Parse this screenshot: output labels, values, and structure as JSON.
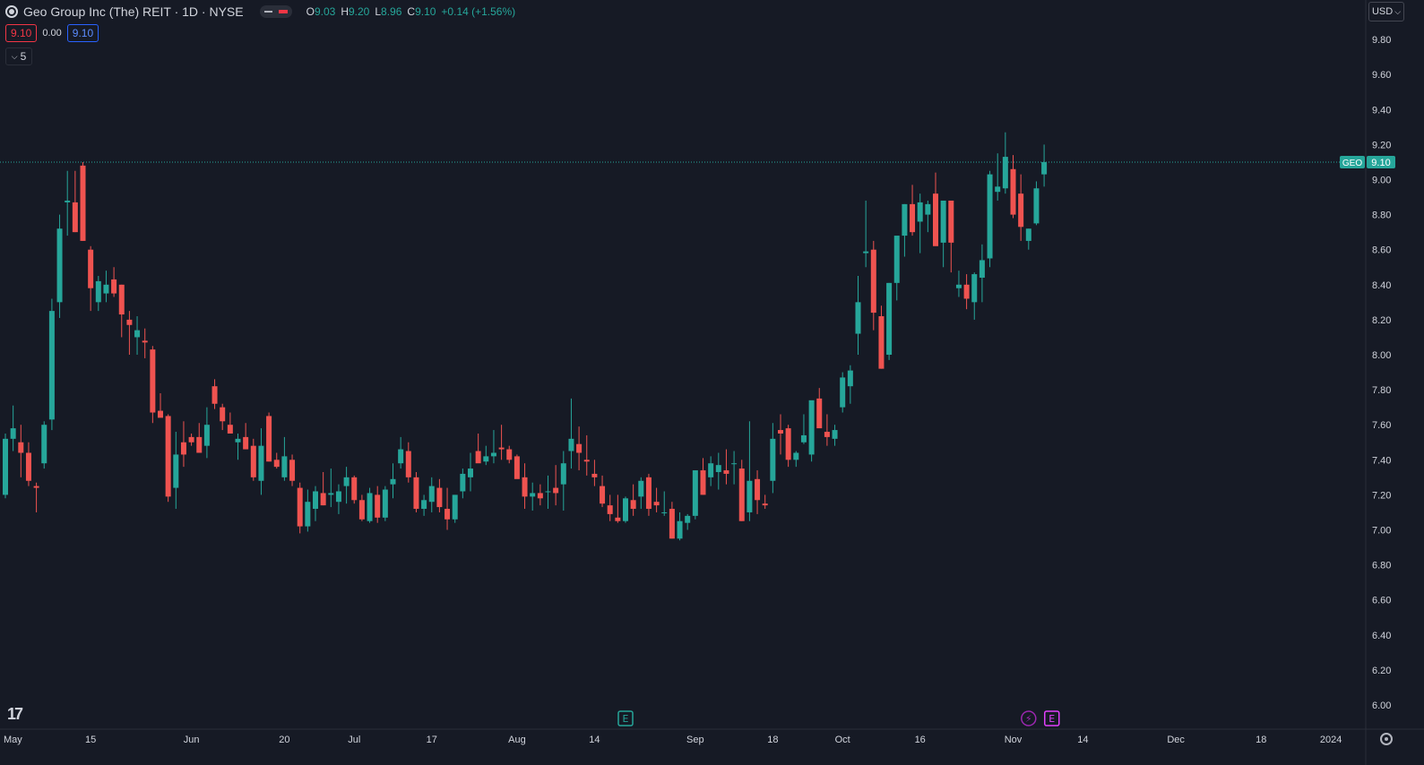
{
  "header": {
    "title": "Geo Group Inc (The) REIT · 1D · NYSE",
    "ohlc": [
      {
        "label": "O",
        "value": "9.03"
      },
      {
        "label": "H",
        "value": "9.20"
      },
      {
        "label": "L",
        "value": "8.96"
      },
      {
        "label": "C",
        "value": "9.10"
      }
    ],
    "change": "+0.14 (+1.56%)",
    "bid": "9.10",
    "spread": "0.00",
    "ask": "9.10",
    "indicator_count": "5",
    "currency": "USD"
  },
  "colors": {
    "background": "#161a25",
    "up": "#26a69a",
    "down": "#ef5350",
    "grid": "#2a2e39",
    "text": "#d1d4dc"
  },
  "markers": [
    {
      "type": "earnings",
      "label": "E",
      "date_index": 80,
      "color": "#26a69a"
    },
    {
      "type": "dividend",
      "label": "⚡",
      "date_index": 132,
      "color": "#9c27b0"
    },
    {
      "type": "earnings",
      "label": "E",
      "date_index": 135,
      "color": "#e040fb"
    }
  ],
  "chart_data": {
    "type": "candlestick",
    "symbol": "GEO",
    "last_price": "9.10",
    "ylim": [
      5.9,
      10.0
    ],
    "y_ticks": [
      "9.80",
      "9.60",
      "9.40",
      "9.20",
      "9.00",
      "8.80",
      "8.60",
      "8.40",
      "8.20",
      "8.00",
      "7.80",
      "7.60",
      "7.40",
      "7.20",
      "7.00",
      "6.80",
      "6.60",
      "6.40",
      "6.20",
      "6.00"
    ],
    "x_ticks": [
      {
        "label": "May",
        "index": 0
      },
      {
        "label": "15",
        "index": 11
      },
      {
        "label": "Jun",
        "index": 24
      },
      {
        "label": "20",
        "index": 36
      },
      {
        "label": "Jul",
        "index": 45
      },
      {
        "label": "17",
        "index": 55
      },
      {
        "label": "Aug",
        "index": 66
      },
      {
        "label": "14",
        "index": 76
      },
      {
        "label": "Sep",
        "index": 89
      },
      {
        "label": "18",
        "index": 99
      },
      {
        "label": "Oct",
        "index": 108
      },
      {
        "label": "16",
        "index": 118
      },
      {
        "label": "Nov",
        "index": 130
      },
      {
        "label": "14",
        "index": 139
      },
      {
        "label": "Dec",
        "index": 151
      },
      {
        "label": "18",
        "index": 162
      },
      {
        "label": "2024",
        "index": 171
      }
    ],
    "ohlc": [
      [
        7.2,
        7.55,
        7.18,
        7.52
      ],
      [
        7.52,
        7.71,
        7.45,
        7.58
      ],
      [
        7.5,
        7.6,
        7.3,
        7.44
      ],
      [
        7.44,
        7.5,
        7.25,
        7.28
      ],
      [
        7.25,
        7.27,
        7.1,
        7.24
      ],
      [
        7.38,
        7.62,
        7.35,
        7.6
      ],
      [
        7.63,
        8.32,
        7.57,
        8.25
      ],
      [
        8.3,
        8.8,
        8.21,
        8.72
      ],
      [
        8.87,
        9.05,
        8.68,
        8.88
      ],
      [
        8.87,
        9.05,
        8.7,
        8.7
      ],
      [
        9.08,
        9.1,
        8.65,
        8.65
      ],
      [
        8.6,
        8.62,
        8.25,
        8.38
      ],
      [
        8.3,
        8.45,
        8.25,
        8.42
      ],
      [
        8.35,
        8.48,
        8.3,
        8.4
      ],
      [
        8.43,
        8.5,
        8.33,
        8.35
      ],
      [
        8.4,
        8.4,
        8.1,
        8.23
      ],
      [
        8.2,
        8.25,
        8.0,
        8.17
      ],
      [
        8.1,
        8.22,
        8.0,
        8.14
      ],
      [
        8.08,
        8.15,
        7.98,
        8.07
      ],
      [
        8.03,
        8.05,
        7.61,
        7.67
      ],
      [
        7.68,
        7.78,
        7.65,
        7.64
      ],
      [
        7.65,
        7.66,
        7.16,
        7.19
      ],
      [
        7.24,
        7.56,
        7.12,
        7.43
      ],
      [
        7.5,
        7.62,
        7.36,
        7.43
      ],
      [
        7.53,
        7.55,
        7.48,
        7.5
      ],
      [
        7.53,
        7.61,
        7.44,
        7.44
      ],
      [
        7.48,
        7.7,
        7.41,
        7.6
      ],
      [
        7.82,
        7.86,
        7.69,
        7.72
      ],
      [
        7.7,
        7.72,
        7.57,
        7.62
      ],
      [
        7.6,
        7.67,
        7.55,
        7.55
      ],
      [
        7.5,
        7.55,
        7.4,
        7.52
      ],
      [
        7.53,
        7.61,
        7.46,
        7.46
      ],
      [
        7.48,
        7.52,
        7.28,
        7.3
      ],
      [
        7.28,
        7.58,
        7.2,
        7.48
      ],
      [
        7.65,
        7.67,
        7.39,
        7.39
      ],
      [
        7.4,
        7.44,
        7.35,
        7.36
      ],
      [
        7.3,
        7.53,
        7.28,
        7.42
      ],
      [
        7.4,
        7.43,
        7.25,
        7.28
      ],
      [
        7.24,
        7.27,
        6.98,
        7.02
      ],
      [
        7.02,
        7.23,
        6.99,
        7.16
      ],
      [
        7.12,
        7.25,
        7.05,
        7.22
      ],
      [
        7.21,
        7.33,
        7.14,
        7.14
      ],
      [
        7.2,
        7.35,
        7.13,
        7.21
      ],
      [
        7.16,
        7.26,
        7.09,
        7.22
      ],
      [
        7.25,
        7.36,
        7.15,
        7.3
      ],
      [
        7.3,
        7.31,
        7.15,
        7.17
      ],
      [
        7.17,
        7.2,
        7.05,
        7.06
      ],
      [
        7.05,
        7.24,
        7.04,
        7.21
      ],
      [
        7.2,
        7.25,
        7.04,
        7.07
      ],
      [
        7.07,
        7.25,
        7.05,
        7.23
      ],
      [
        7.26,
        7.38,
        7.18,
        7.29
      ],
      [
        7.38,
        7.53,
        7.35,
        7.46
      ],
      [
        7.45,
        7.5,
        7.27,
        7.3
      ],
      [
        7.3,
        7.33,
        7.1,
        7.12
      ],
      [
        7.12,
        7.2,
        7.08,
        7.17
      ],
      [
        7.16,
        7.3,
        7.1,
        7.25
      ],
      [
        7.24,
        7.29,
        7.1,
        7.13
      ],
      [
        7.12,
        7.24,
        7.0,
        7.06
      ],
      [
        7.06,
        7.2,
        7.04,
        7.2
      ],
      [
        7.22,
        7.35,
        7.18,
        7.32
      ],
      [
        7.3,
        7.44,
        7.22,
        7.35
      ],
      [
        7.45,
        7.55,
        7.4,
        7.38
      ],
      [
        7.39,
        7.48,
        7.37,
        7.42
      ],
      [
        7.42,
        7.57,
        7.38,
        7.44
      ],
      [
        7.47,
        7.6,
        7.4,
        7.46
      ],
      [
        7.46,
        7.48,
        7.38,
        7.4
      ],
      [
        7.42,
        7.43,
        7.31,
        7.29
      ],
      [
        7.3,
        7.38,
        7.12,
        7.19
      ],
      [
        7.19,
        7.27,
        7.11,
        7.21
      ],
      [
        7.21,
        7.26,
        7.14,
        7.18
      ],
      [
        7.22,
        7.31,
        7.12,
        7.22
      ],
      [
        7.24,
        7.37,
        7.14,
        7.21
      ],
      [
        7.26,
        7.45,
        7.11,
        7.38
      ],
      [
        7.45,
        7.75,
        7.35,
        7.52
      ],
      [
        7.49,
        7.59,
        7.34,
        7.44
      ],
      [
        7.4,
        7.54,
        7.31,
        7.39
      ],
      [
        7.32,
        7.4,
        7.25,
        7.3
      ],
      [
        7.25,
        7.31,
        7.13,
        7.15
      ],
      [
        7.14,
        7.2,
        7.05,
        7.09
      ],
      [
        7.07,
        7.2,
        7.04,
        7.05
      ],
      [
        7.05,
        7.19,
        7.04,
        7.18
      ],
      [
        7.17,
        7.26,
        7.08,
        7.12
      ],
      [
        7.19,
        7.3,
        7.12,
        7.28
      ],
      [
        7.3,
        7.32,
        7.08,
        7.12
      ],
      [
        7.16,
        7.24,
        7.1,
        7.14
      ],
      [
        7.1,
        7.22,
        7.08,
        7.1
      ],
      [
        7.12,
        7.16,
        6.95,
        6.95
      ],
      [
        6.95,
        7.1,
        6.94,
        7.05
      ],
      [
        7.04,
        7.09,
        7.0,
        7.08
      ],
      [
        7.08,
        7.34,
        7.06,
        7.34
      ],
      [
        7.34,
        7.41,
        7.2,
        7.2
      ],
      [
        7.3,
        7.42,
        7.25,
        7.38
      ],
      [
        7.33,
        7.44,
        7.23,
        7.37
      ],
      [
        7.34,
        7.46,
        7.26,
        7.32
      ],
      [
        7.38,
        7.45,
        7.26,
        7.38
      ],
      [
        7.35,
        7.4,
        7.05,
        7.05
      ],
      [
        7.1,
        7.62,
        7.05,
        7.28
      ],
      [
        7.29,
        7.34,
        7.09,
        7.17
      ],
      [
        7.15,
        7.2,
        7.12,
        7.14
      ],
      [
        7.28,
        7.61,
        7.21,
        7.52
      ],
      [
        7.57,
        7.66,
        7.43,
        7.55
      ],
      [
        7.58,
        7.6,
        7.36,
        7.4
      ],
      [
        7.4,
        7.45,
        7.36,
        7.44
      ],
      [
        7.5,
        7.66,
        7.49,
        7.54
      ],
      [
        7.43,
        7.72,
        7.39,
        7.74
      ],
      [
        7.75,
        7.81,
        7.6,
        7.58
      ],
      [
        7.56,
        7.66,
        7.48,
        7.53
      ],
      [
        7.52,
        7.6,
        7.48,
        7.57
      ],
      [
        7.7,
        7.9,
        7.67,
        7.87
      ],
      [
        7.82,
        7.94,
        7.72,
        7.91
      ],
      [
        8.12,
        8.45,
        8.0,
        8.3
      ],
      [
        8.58,
        8.88,
        8.5,
        8.59
      ],
      [
        8.6,
        8.65,
        8.14,
        8.24
      ],
      [
        8.22,
        8.28,
        7.92,
        7.92
      ],
      [
        8.0,
        8.41,
        7.97,
        8.41
      ],
      [
        8.41,
        8.66,
        8.31,
        8.68
      ],
      [
        8.68,
        8.86,
        8.56,
        8.86
      ],
      [
        8.86,
        8.97,
        8.68,
        8.7
      ],
      [
        8.76,
        8.92,
        8.58,
        8.87
      ],
      [
        8.8,
        8.88,
        8.7,
        8.86
      ],
      [
        8.92,
        9.04,
        8.65,
        8.62
      ],
      [
        8.64,
        8.87,
        8.5,
        8.88
      ],
      [
        8.88,
        8.87,
        8.47,
        8.64
      ],
      [
        8.38,
        8.48,
        8.33,
        8.4
      ],
      [
        8.4,
        8.46,
        8.26,
        8.32
      ],
      [
        8.3,
        8.47,
        8.2,
        8.46
      ],
      [
        8.44,
        8.63,
        8.3,
        8.54
      ],
      [
        8.55,
        9.05,
        8.5,
        9.03
      ],
      [
        8.93,
        9.15,
        8.88,
        8.96
      ],
      [
        8.95,
        9.27,
        8.92,
        9.13
      ],
      [
        9.06,
        9.14,
        8.78,
        8.8
      ],
      [
        8.92,
        9.03,
        8.65,
        8.73
      ],
      [
        8.65,
        8.72,
        8.6,
        8.72
      ],
      [
        8.75,
        8.99,
        8.74,
        8.95
      ],
      [
        9.03,
        9.2,
        8.96,
        9.1
      ]
    ]
  }
}
